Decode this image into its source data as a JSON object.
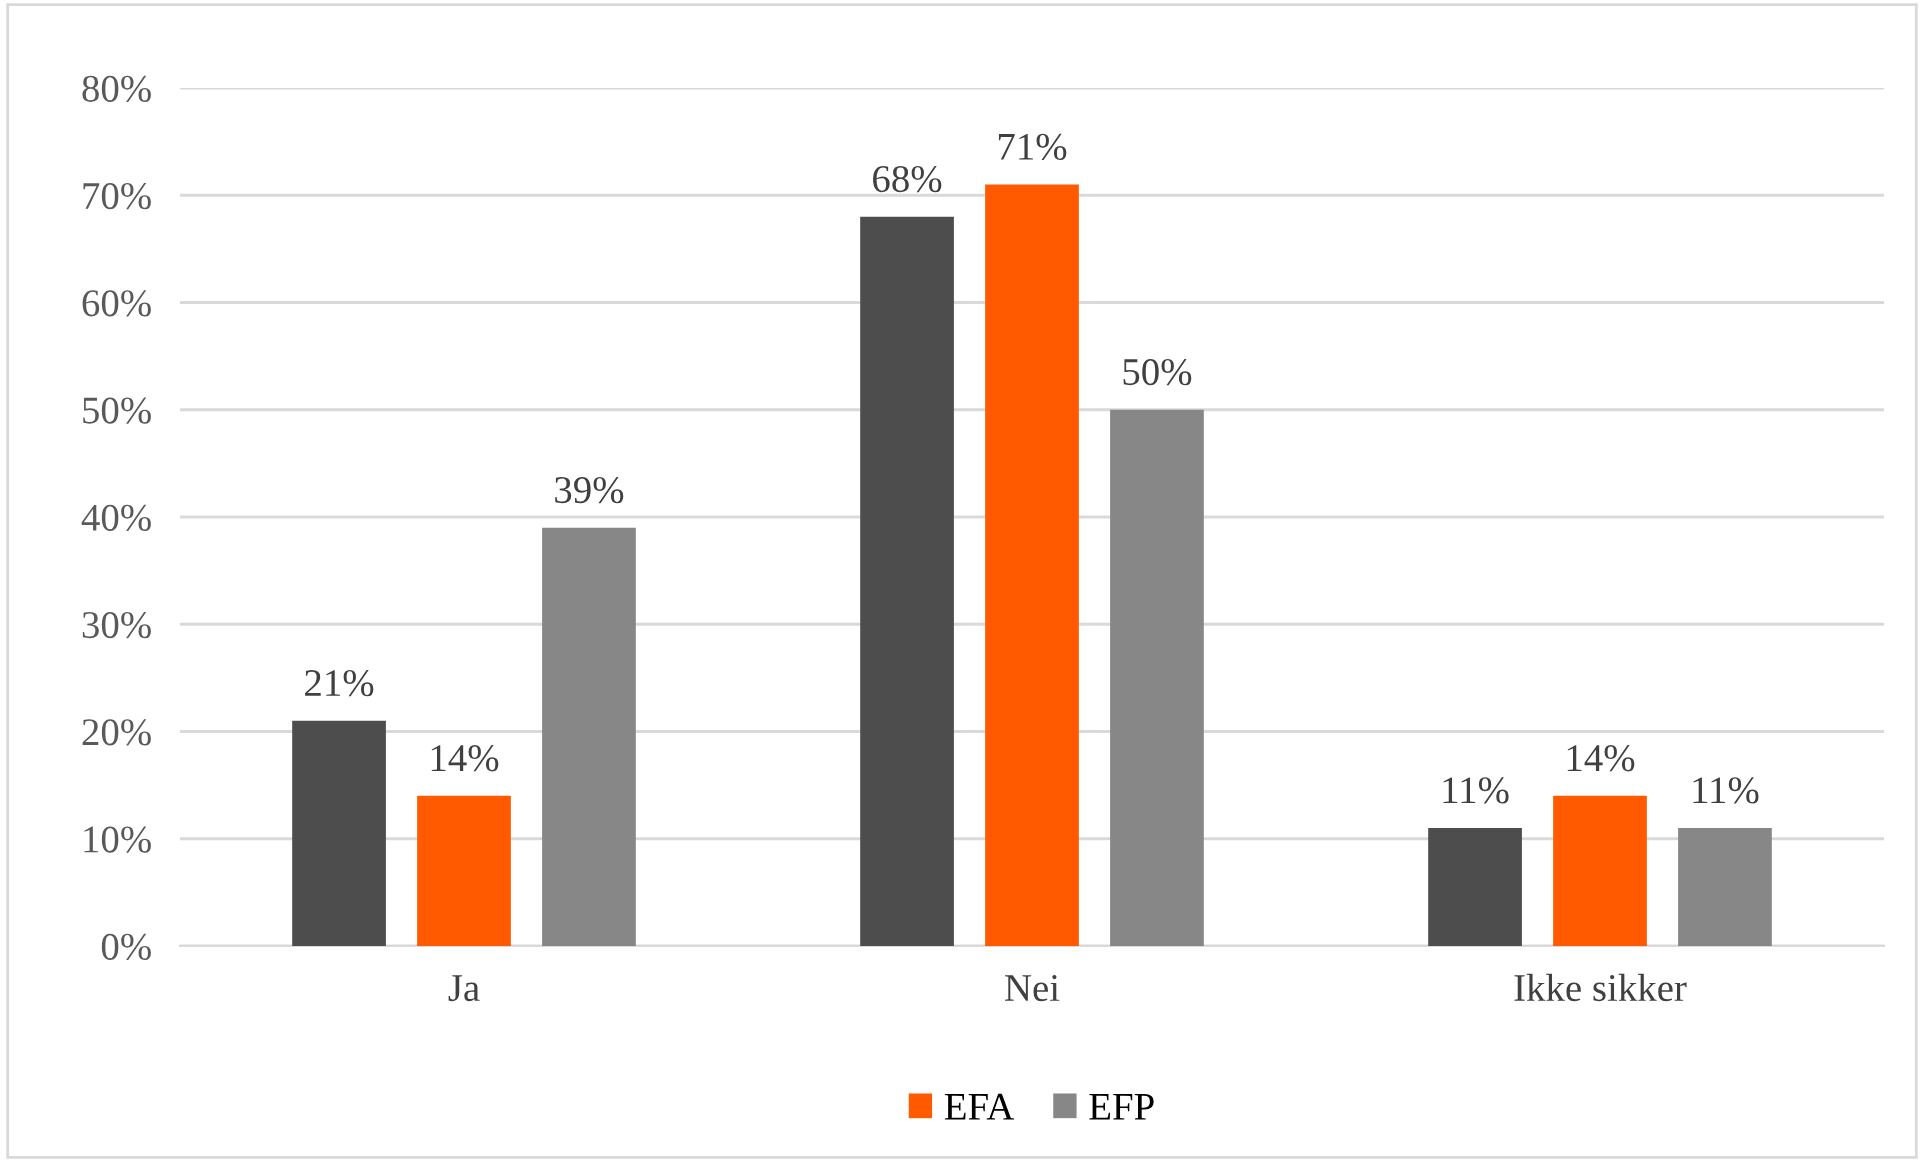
{
  "chart_data": {
    "type": "bar",
    "categories": [
      "Ja",
      "Nei",
      "Ikke sikker"
    ],
    "series": [
      {
        "color": "#4d4d4d",
        "values": [
          21,
          68,
          11
        ],
        "value_labels": [
          "21%",
          "68%",
          "11%"
        ]
      },
      {
        "name": "EFA",
        "color": "#ff5a00",
        "values": [
          14,
          71,
          14
        ],
        "value_labels": [
          "14%",
          "71%",
          "14%"
        ]
      },
      {
        "name": "EFP",
        "color": "#878787",
        "values": [
          39,
          50,
          11
        ],
        "value_labels": [
          "39%",
          "50%",
          "11%"
        ]
      }
    ],
    "ylim": [
      0,
      80
    ],
    "yticks": [
      {
        "value": 0,
        "label": "0%"
      },
      {
        "value": 10,
        "label": "10%"
      },
      {
        "value": 20,
        "label": "20%"
      },
      {
        "value": 30,
        "label": "30%"
      },
      {
        "value": 40,
        "label": "40%"
      },
      {
        "value": 50,
        "label": "50%"
      },
      {
        "value": 60,
        "label": "60%"
      },
      {
        "value": 70,
        "label": "70%"
      },
      {
        "value": 80,
        "label": "80%"
      }
    ],
    "grid": "y",
    "legend": "bottom"
  }
}
